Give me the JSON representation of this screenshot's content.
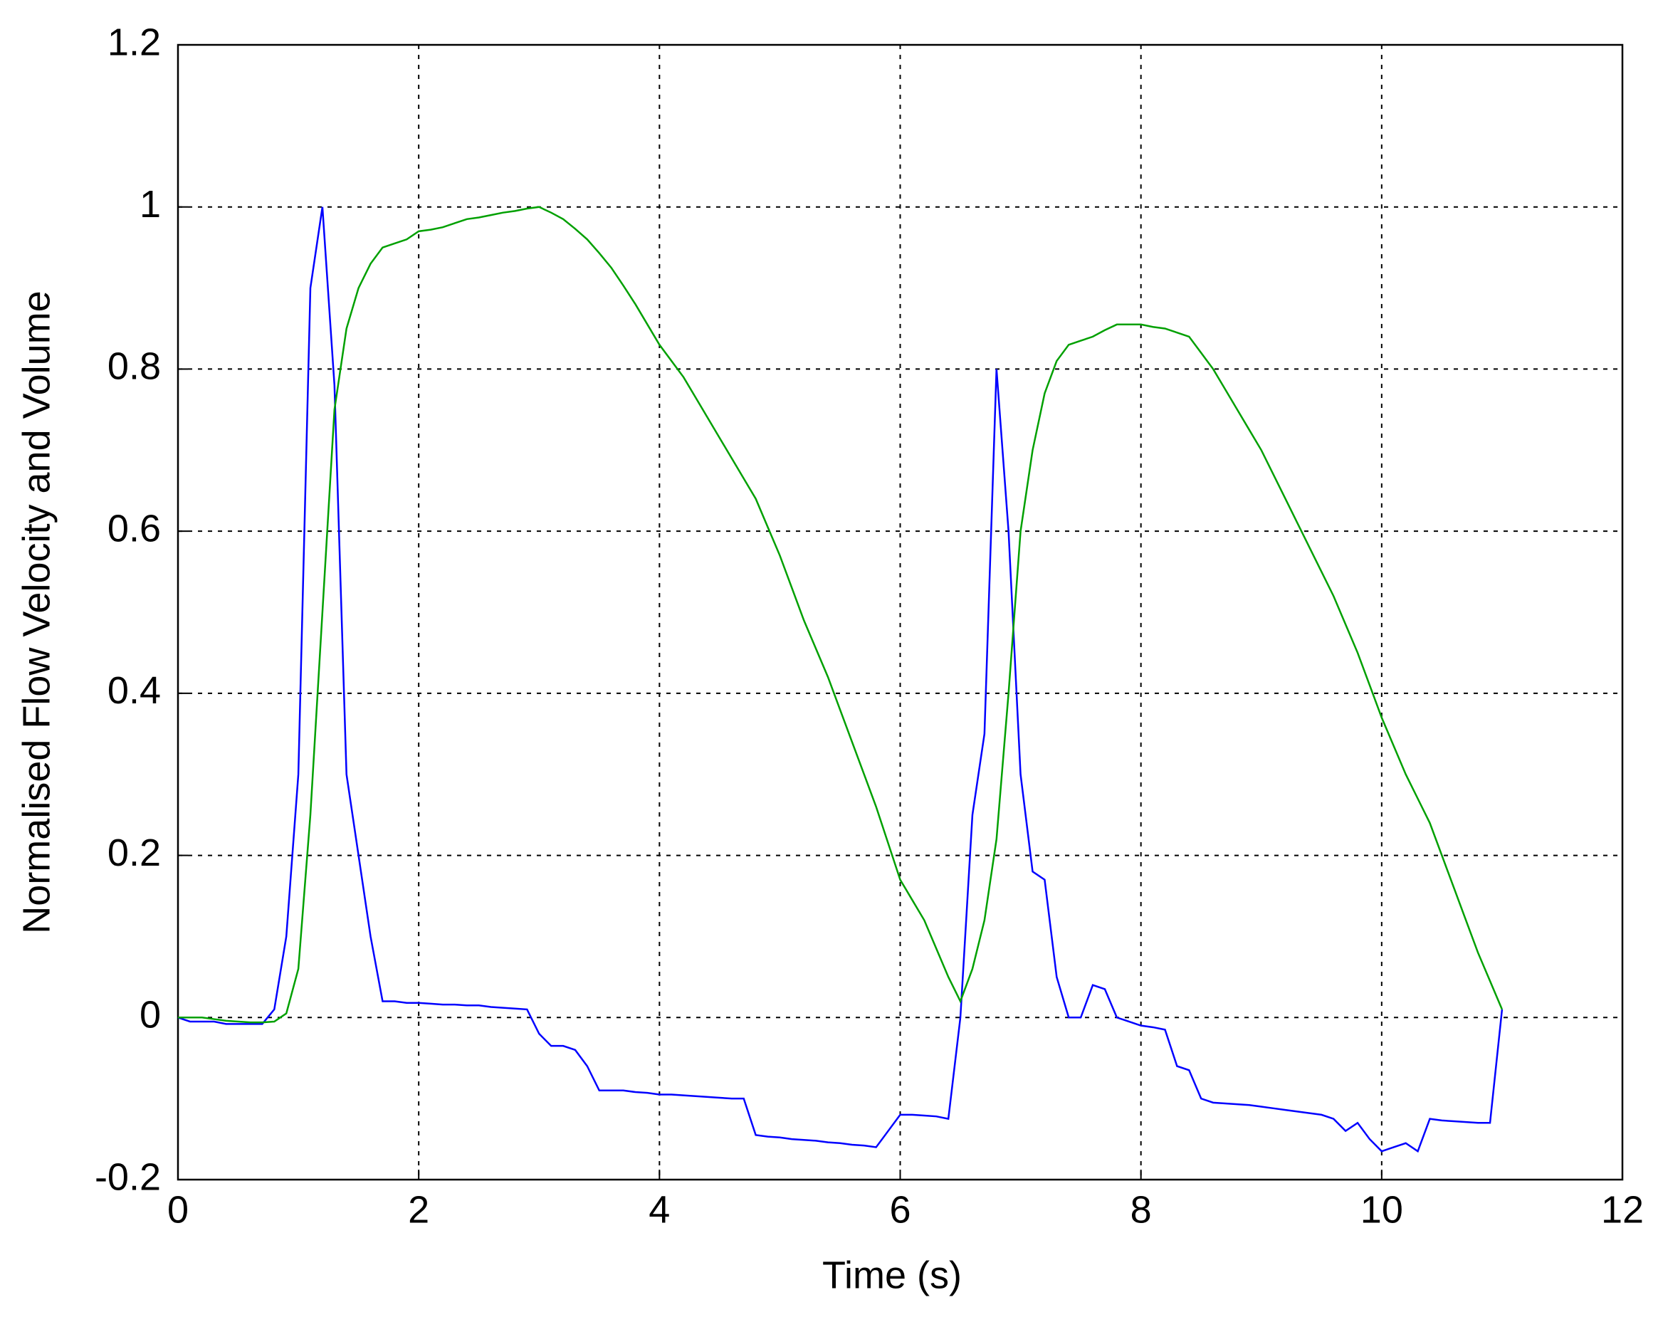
{
  "chart_data": {
    "type": "line",
    "xlabel": "Time (s)",
    "ylabel": "Normalised Flow Velocity and Volume",
    "xlim": [
      0,
      12
    ],
    "ylim": [
      -0.2,
      1.2
    ],
    "xticks": [
      0,
      2,
      4,
      6,
      8,
      10,
      12
    ],
    "yticks": [
      -0.2,
      0,
      0.2,
      0.4,
      0.6,
      0.8,
      1,
      1.2
    ],
    "grid": true,
    "x": [
      0,
      0.1,
      0.2,
      0.3,
      0.4,
      0.5,
      0.6,
      0.7,
      0.8,
      0.9,
      1.0,
      1.1,
      1.2,
      1.3,
      1.4,
      1.5,
      1.6,
      1.7,
      1.8,
      1.9,
      2.0,
      2.1,
      2.2,
      2.3,
      2.4,
      2.5,
      2.6,
      2.7,
      2.8,
      2.9,
      3.0,
      3.1,
      3.2,
      3.3,
      3.4,
      3.5,
      3.6,
      3.7,
      3.8,
      3.9,
      4.0,
      4.1,
      4.2,
      4.3,
      4.4,
      4.5,
      4.6,
      4.7,
      4.8,
      4.9,
      5.0,
      5.1,
      5.2,
      5.3,
      5.4,
      5.5,
      5.6,
      5.7,
      5.8,
      5.9,
      6.0,
      6.1,
      6.2,
      6.3,
      6.4,
      6.5,
      6.6,
      6.7,
      6.8,
      6.9,
      7.0,
      7.1,
      7.2,
      7.3,
      7.4,
      7.5,
      7.6,
      7.7,
      7.8,
      7.9,
      8.0,
      8.1,
      8.2,
      8.3,
      8.4,
      8.5,
      8.6,
      8.7,
      8.8,
      8.9,
      9.0,
      9.1,
      9.2,
      9.3,
      9.4,
      9.5,
      9.6,
      9.7,
      9.8,
      9.9,
      10.0,
      10.1,
      10.2,
      10.3,
      10.4,
      10.5,
      10.6,
      10.7,
      10.8,
      10.9,
      11.0
    ],
    "series": [
      {
        "color": "#0000ff",
        "values": [
          0,
          -0.005,
          -0.005,
          -0.005,
          -0.008,
          -0.008,
          -0.008,
          -0.008,
          0.01,
          0.1,
          0.3,
          0.9,
          1.0,
          0.78,
          0.3,
          0.2,
          0.1,
          0.02,
          0.02,
          0.018,
          0.018,
          0.017,
          0.016,
          0.016,
          0.015,
          0.015,
          0.013,
          0.012,
          0.011,
          0.01,
          -0.02,
          -0.035,
          -0.035,
          -0.04,
          -0.06,
          -0.09,
          -0.09,
          -0.09,
          -0.092,
          -0.093,
          -0.095,
          -0.095,
          -0.096,
          -0.097,
          -0.098,
          -0.099,
          -0.1,
          -0.1,
          -0.145,
          -0.147,
          -0.148,
          -0.15,
          -0.151,
          -0.152,
          -0.154,
          -0.155,
          -0.157,
          -0.158,
          -0.16,
          -0.14,
          -0.12,
          -0.12,
          -0.121,
          -0.122,
          -0.125,
          0.0,
          0.25,
          0.35,
          0.8,
          0.6,
          0.3,
          0.18,
          0.17,
          0.05,
          0.0,
          0.0,
          0.04,
          0.035,
          0.0,
          -0.005,
          -0.01,
          -0.012,
          -0.015,
          -0.06,
          -0.065,
          -0.1,
          -0.105,
          -0.106,
          -0.107,
          -0.108,
          -0.11,
          -0.112,
          -0.114,
          -0.116,
          -0.118,
          -0.12,
          -0.125,
          -0.14,
          -0.13,
          -0.15,
          -0.165,
          -0.16,
          -0.155,
          -0.165,
          -0.125,
          -0.127,
          -0.128,
          -0.129,
          -0.13,
          -0.13,
          0.01
        ]
      },
      {
        "color": "#00a000",
        "values": [
          0,
          0,
          0,
          -0.002,
          -0.004,
          -0.005,
          -0.006,
          -0.006,
          -0.005,
          0.005,
          0.06,
          0.25,
          0.5,
          0.75,
          0.85,
          0.9,
          0.93,
          0.95,
          0.955,
          0.96,
          0.97,
          0.972,
          0.975,
          0.98,
          0.985,
          0.987,
          0.99,
          0.993,
          0.995,
          0.998,
          1.0,
          0.993,
          0.985,
          0.973,
          0.96,
          0.943,
          0.925,
          0.903,
          0.88,
          0.855,
          0.83,
          0.81,
          0.79,
          0.765,
          0.74,
          0.715,
          0.69,
          0.665,
          0.64,
          0.605,
          0.57,
          0.53,
          0.49,
          0.455,
          0.42,
          0.38,
          0.34,
          0.3,
          0.26,
          0.215,
          0.17,
          0.145,
          0.12,
          0.085,
          0.05,
          0.02,
          0.06,
          0.12,
          0.22,
          0.4,
          0.6,
          0.7,
          0.77,
          0.81,
          0.83,
          0.835,
          0.84,
          0.848,
          0.855,
          0.855,
          0.855,
          0.852,
          0.85,
          0.845,
          0.84,
          0.82,
          0.8,
          0.775,
          0.75,
          0.725,
          0.7,
          0.67,
          0.64,
          0.61,
          0.58,
          0.55,
          0.52,
          0.485,
          0.45,
          0.41,
          0.37,
          0.335,
          0.3,
          0.27,
          0.24,
          0.2,
          0.16,
          0.12,
          0.08,
          0.045,
          0.01
        ]
      }
    ]
  }
}
